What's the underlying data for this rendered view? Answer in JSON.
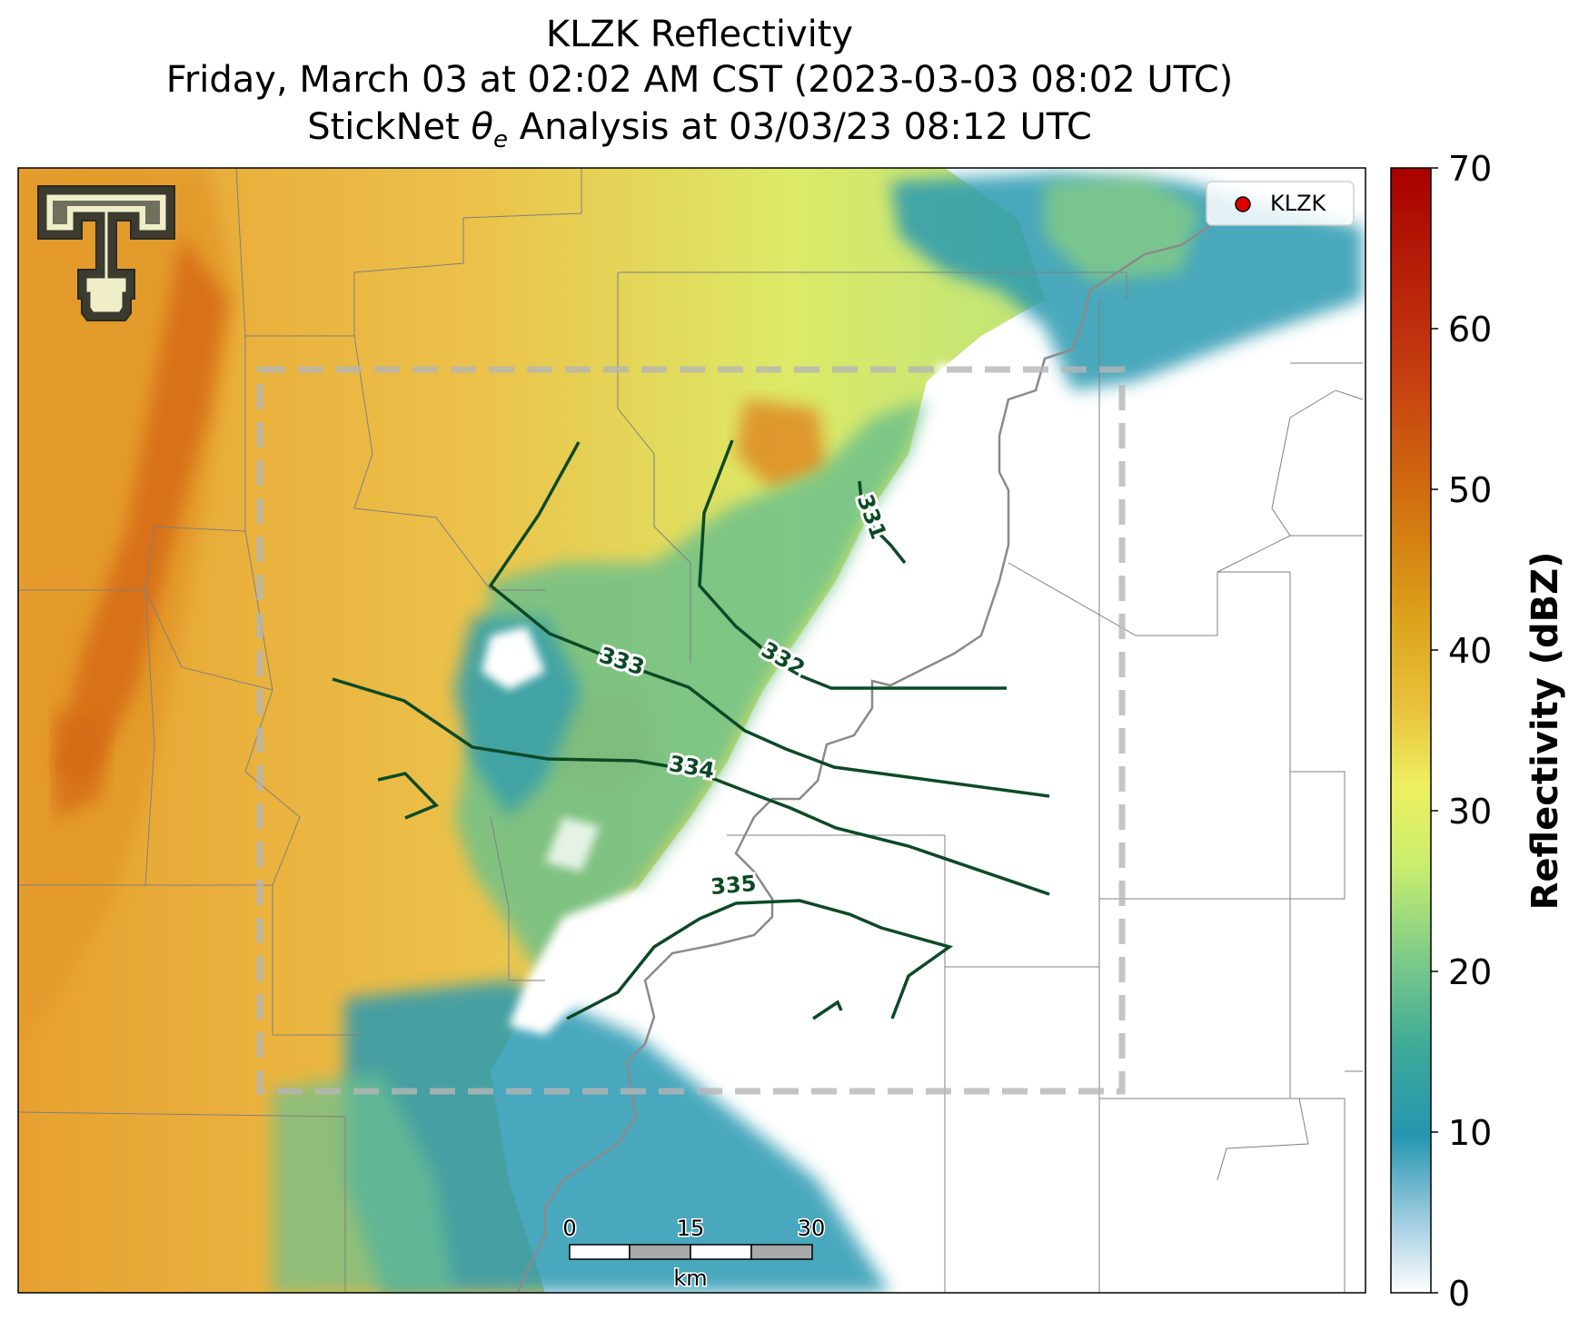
{
  "header": {
    "title_line1": "KLZK Reflectivity",
    "title_line2": "Friday, March 03 at 02:02 AM CST (2023-03-03 08:02 UTC)",
    "title_line3_pre": "StickNet ",
    "title_line3_theta": "θ",
    "title_line3_sub": "e",
    "title_line3_post": " Analysis at 03/03/23 08:12 UTC"
  },
  "legend": {
    "label": "KLZK",
    "marker_color": "#e00000"
  },
  "colorbar": {
    "label": "Reflectivity (dBZ)",
    "ticks": [
      "70",
      "60",
      "50",
      "40",
      "30",
      "20",
      "10",
      "0"
    ],
    "min": 0,
    "max": 70
  },
  "contours": [
    "331",
    "332",
    "333",
    "334",
    "335"
  ],
  "scalebar": {
    "ticks": [
      "0",
      "15",
      "30"
    ],
    "unit": "km"
  },
  "colors": {
    "contour": "#0c4a26",
    "analysis_box": "#b5b5b5",
    "county_lines": "#808080"
  }
}
